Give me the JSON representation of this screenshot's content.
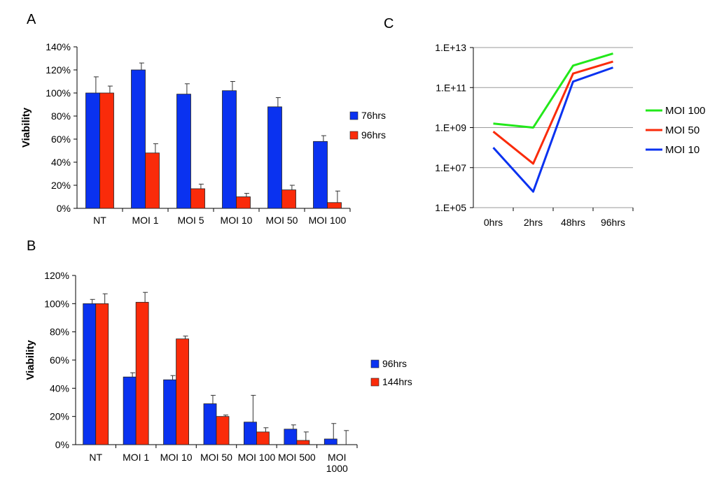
{
  "panels": {
    "a": "A",
    "b": "B",
    "c": "C"
  },
  "colors": {
    "blue": "#0a32f0",
    "red": "#fa2b0a",
    "green": "#22e81a"
  },
  "chart_data": [
    {
      "id": "A",
      "type": "bar",
      "ylabel": "Viability",
      "ylim": [
        0,
        1.4
      ],
      "yticks": [
        0,
        0.2,
        0.4,
        0.6,
        0.8,
        1.0,
        1.2,
        1.4
      ],
      "ytick_labels": [
        "0%",
        "20%",
        "40%",
        "60%",
        "80%",
        "100%",
        "120%",
        "140%"
      ],
      "categories": [
        [
          "NT"
        ],
        [
          "MOI 1"
        ],
        [
          "MOI 5"
        ],
        [
          "MOI 10"
        ],
        [
          "MOI 50"
        ],
        [
          "MOI 100"
        ]
      ],
      "series": [
        {
          "name": "76hrs",
          "color": "#0a32f0",
          "values": [
            1.0,
            1.2,
            0.99,
            1.02,
            0.88,
            0.58
          ],
          "errors": [
            0.14,
            0.06,
            0.09,
            0.08,
            0.08,
            0.05
          ]
        },
        {
          "name": "96hrs",
          "color": "#fa2b0a",
          "values": [
            1.0,
            0.48,
            0.17,
            0.1,
            0.16,
            0.05
          ],
          "errors": [
            0.06,
            0.08,
            0.04,
            0.03,
            0.04,
            0.1
          ]
        }
      ],
      "legend_position": "right"
    },
    {
      "id": "B",
      "type": "bar",
      "ylabel": "Viability",
      "ylim": [
        0,
        1.2
      ],
      "yticks": [
        0,
        0.2,
        0.4,
        0.6,
        0.8,
        1.0,
        1.2
      ],
      "ytick_labels": [
        "0%",
        "20%",
        "40%",
        "60%",
        "80%",
        "100%",
        "120%"
      ],
      "categories": [
        [
          "NT"
        ],
        [
          "MOI 1"
        ],
        [
          "MOI 10"
        ],
        [
          "MOI 50"
        ],
        [
          "MOI 100"
        ],
        [
          "MOI 500"
        ],
        [
          "MOI",
          "1000"
        ]
      ],
      "series": [
        {
          "name": "96hrs",
          "color": "#0a32f0",
          "values": [
            1.0,
            0.48,
            0.46,
            0.29,
            0.16,
            0.11,
            0.04
          ],
          "errors": [
            0.03,
            0.03,
            0.03,
            0.06,
            0.19,
            0.03,
            0.11
          ]
        },
        {
          "name": "144hrs",
          "color": "#fa2b0a",
          "values": [
            1.0,
            1.01,
            0.75,
            0.2,
            0.09,
            0.03,
            0.0
          ],
          "errors": [
            0.07,
            0.07,
            0.02,
            0.01,
            0.03,
            0.06,
            0.1
          ]
        }
      ],
      "legend_position": "right"
    },
    {
      "id": "C",
      "type": "line",
      "yscale": "log",
      "ylim_exp": [
        5,
        13
      ],
      "yticks_exp": [
        5,
        7,
        9,
        11,
        13
      ],
      "ytick_labels": [
        "1.E+05",
        "1.E+07",
        "1.E+09",
        "1.E+11",
        "1.E+13"
      ],
      "categories": [
        "0hrs",
        "2hrs",
        "48hrs",
        "96hrs"
      ],
      "grid": true,
      "series": [
        {
          "name": "MOI 100",
          "color": "#22e81a",
          "log10_values": [
            9.2,
            9.0,
            12.1,
            12.7
          ]
        },
        {
          "name": "MOI 50",
          "color": "#fa2b0a",
          "log10_values": [
            8.8,
            7.2,
            11.7,
            12.3
          ]
        },
        {
          "name": "MOI 10",
          "color": "#0a32f0",
          "log10_values": [
            8.0,
            5.8,
            11.3,
            12.0
          ]
        }
      ],
      "legend_position": "right"
    }
  ]
}
